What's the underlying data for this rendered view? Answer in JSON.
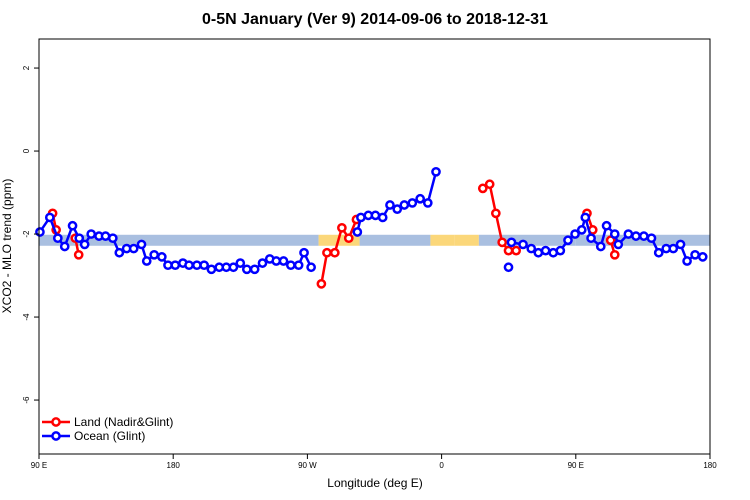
{
  "chart_data": {
    "type": "line",
    "title": "0-5N January (Ver 9)   2014-09-06 to 2018-12-31",
    "xlabel": "Longitude (deg E)",
    "ylabel": "XCO2 - MLO trend (ppm)",
    "xlim": [
      90,
      450
    ],
    "ylim": [
      -7.3,
      2.7
    ],
    "grid": false,
    "legend_position": "bottom-left",
    "x_ticks": [
      {
        "value": 90,
        "label": "90 E"
      },
      {
        "value": 162,
        "label": "180"
      },
      {
        "value": 234,
        "label": "90 W"
      },
      {
        "value": 306,
        "label": "0"
      },
      {
        "value": 378,
        "label": "90 E"
      },
      {
        "value": 450,
        "label": "180"
      }
    ],
    "y_ticks": [
      {
        "value": 2,
        "label": "2"
      },
      {
        "value": 0,
        "label": "0"
      },
      {
        "value": -2,
        "label": "-2"
      },
      {
        "value": -4,
        "label": "-4"
      },
      {
        "value": -6,
        "label": "-6"
      }
    ],
    "colors": {
      "land": "#ff0000",
      "ocean": "#0000ff",
      "band_ocean": "#a9bfe0",
      "band_land": "#fbd77a"
    },
    "band": {
      "y": -2.15,
      "segments": [
        {
          "x0": 90,
          "x1": 240,
          "kind": "ocean"
        },
        {
          "x0": 240,
          "x1": 262,
          "kind": "land"
        },
        {
          "x0": 262,
          "x1": 300,
          "kind": "ocean"
        },
        {
          "x0": 300,
          "x1": 313,
          "kind": "land"
        },
        {
          "x0": 313,
          "x1": 326,
          "kind": "land"
        },
        {
          "x0": 326,
          "x1": 378,
          "kind": "ocean"
        },
        {
          "x0": 378,
          "x1": 389,
          "kind": "ocean"
        },
        {
          "x0": 389,
          "x1": 450,
          "kind": "ocean"
        }
      ]
    },
    "series": [
      {
        "name": "Land (Nadir&Glint)",
        "color": "#ff0000",
        "points": [
          [
            97.3,
            -1.5
          ],
          [
            99.2,
            -1.9
          ],
          [
            null,
            null
          ],
          [
            109.5,
            -2.1
          ],
          [
            111.3,
            -2.5
          ],
          [
            null,
            null
          ],
          [
            241.5,
            -3.2
          ],
          [
            244.5,
            -2.45
          ],
          [
            248.7,
            -2.45
          ],
          [
            252.5,
            -1.85
          ],
          [
            256.2,
            -2.1
          ],
          [
            260.3,
            -1.65
          ],
          [
            null,
            null
          ],
          [
            328.1,
            -0.9
          ],
          [
            331.8,
            -0.8
          ],
          [
            335.1,
            -1.5
          ],
          [
            338.5,
            -2.2
          ],
          [
            341.9,
            -2.4
          ],
          [
            346,
            -2.4
          ],
          [
            null,
            null
          ],
          [
            384,
            -1.5
          ],
          [
            387.1,
            -1.9
          ],
          [
            null,
            null
          ],
          [
            396.7,
            -2.15
          ],
          [
            398.9,
            -2.5
          ]
        ]
      },
      {
        "name": "Ocean (Glint)",
        "color": "#0000ff",
        "points": [
          [
            90.5,
            -1.95
          ],
          [
            95.8,
            -1.6
          ],
          [
            100.1,
            -2.1
          ],
          [
            103.8,
            -2.3
          ],
          [
            108,
            -1.8
          ],
          [
            111.6,
            -2.1
          ],
          [
            114.5,
            -2.25
          ],
          [
            118,
            -2.0
          ],
          [
            122.2,
            -2.05
          ],
          [
            125.7,
            -2.05
          ],
          [
            129.6,
            -2.1
          ],
          [
            133.1,
            -2.45
          ],
          [
            137,
            -2.35
          ],
          [
            140.8,
            -2.35
          ],
          [
            145,
            -2.25
          ],
          [
            147.8,
            -2.65
          ],
          [
            151.8,
            -2.5
          ],
          [
            155.9,
            -2.55
          ],
          [
            159.2,
            -2.75
          ],
          [
            163.1,
            -2.75
          ],
          [
            167.2,
            -2.7
          ],
          [
            170.5,
            -2.75
          ],
          [
            174.7,
            -2.75
          ],
          [
            178.6,
            -2.75
          ],
          [
            182.5,
            -2.85
          ],
          [
            186.7,
            -2.8
          ],
          [
            190.5,
            -2.8
          ],
          [
            194.3,
            -2.8
          ],
          [
            198,
            -2.7
          ],
          [
            201.5,
            -2.85
          ],
          [
            205.7,
            -2.85
          ],
          [
            209.9,
            -2.7
          ],
          [
            213.8,
            -2.6
          ],
          [
            217.3,
            -2.65
          ],
          [
            221.2,
            -2.65
          ],
          [
            225.1,
            -2.75
          ],
          [
            229.3,
            -2.75
          ],
          [
            232.2,
            -2.45
          ],
          [
            236,
            -2.8
          ],
          [
            null,
            null
          ],
          [
            260.8,
            -1.95
          ],
          [
            262.7,
            -1.6
          ],
          [
            266.7,
            -1.55
          ],
          [
            270.5,
            -1.55
          ],
          [
            274.4,
            -1.6
          ],
          [
            278.3,
            -1.3
          ],
          [
            282.2,
            -1.4
          ],
          [
            286,
            -1.3
          ],
          [
            290.3,
            -1.25
          ],
          [
            294.5,
            -1.15
          ],
          [
            298.6,
            -1.25
          ],
          [
            303,
            -0.5
          ],
          [
            null,
            null
          ],
          [
            341.9,
            -2.8
          ],
          [
            null,
            null
          ],
          [
            343.5,
            -2.2
          ],
          [
            349.7,
            -2.25
          ],
          [
            354.1,
            -2.35
          ],
          [
            357.9,
            -2.45
          ],
          [
            361.8,
            -2.4
          ],
          [
            365.9,
            -2.45
          ],
          [
            369.7,
            -2.4
          ],
          [
            373.8,
            -2.15
          ],
          [
            377.6,
            -2.0
          ],
          [
            381.2,
            -1.9
          ],
          [
            383.1,
            -1.6
          ],
          [
            386.2,
            -2.1
          ],
          [
            391.4,
            -2.3
          ],
          [
            394.5,
            -1.8
          ],
          [
            398.9,
            -2.0
          ],
          [
            400.8,
            -2.25
          ],
          [
            406.2,
            -2.0
          ],
          [
            410.3,
            -2.05
          ],
          [
            414.5,
            -2.05
          ],
          [
            418.6,
            -2.1
          ],
          [
            422.5,
            -2.45
          ],
          [
            426.5,
            -2.35
          ],
          [
            430.3,
            -2.35
          ],
          [
            434.2,
            -2.25
          ],
          [
            437.7,
            -2.65
          ],
          [
            442,
            -2.5
          ],
          [
            446.1,
            -2.55
          ]
        ]
      }
    ]
  }
}
